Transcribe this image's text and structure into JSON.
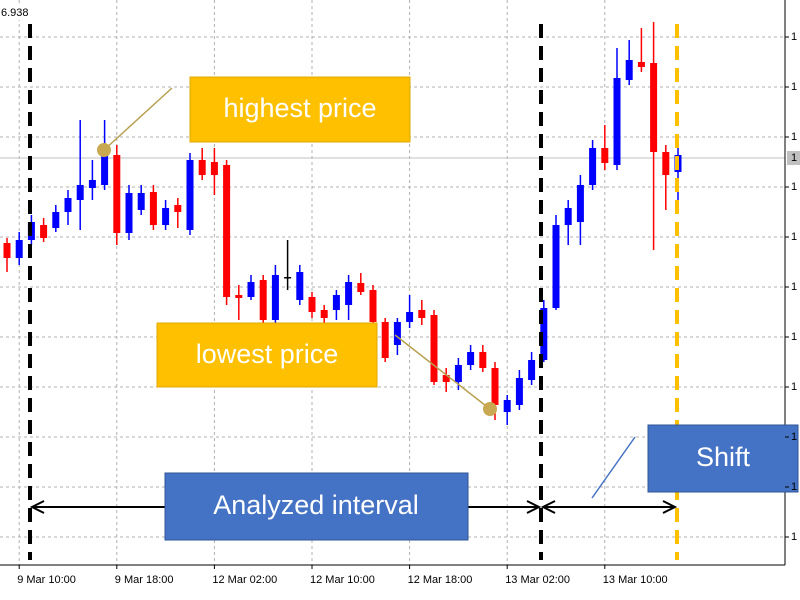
{
  "chart_data": {
    "type": "candlestick",
    "corner_label": "6.938",
    "categories": [
      null,
      "9 Mar 10:00",
      null,
      null,
      null,
      null,
      null,
      null,
      null,
      "9 Mar 18:00",
      null,
      null,
      null,
      null,
      null,
      null,
      null,
      "12 Mar 02:00",
      null,
      null,
      null,
      null,
      null,
      null,
      null,
      "12 Mar 10:00",
      null,
      null,
      null,
      null,
      null,
      null,
      null,
      "12 Mar 18:00",
      null,
      null,
      null,
      null,
      null,
      null,
      null,
      "13 Mar 02:00",
      null,
      null,
      null,
      null,
      null,
      null,
      null,
      "13 Mar 10:00",
      null,
      null,
      null,
      null,
      null,
      null
    ],
    "open": [
      1.16588,
      1.16558,
      1.16594,
      1.16624,
      1.16618,
      1.1665,
      1.16674,
      1.16698,
      1.16704,
      1.16764,
      1.16608,
      1.16654,
      1.1669,
      1.16624,
      1.16664,
      1.16614,
      1.16754,
      1.1675,
      1.16744,
      1.16484,
      1.1648,
      1.16514,
      1.16434,
      1.1652,
      1.16474,
      1.1648,
      1.16454,
      1.16454,
      1.16464,
      1.16508,
      1.16494,
      1.1643,
      1.16384,
      1.1643,
      1.16454,
      1.16444,
      1.16324,
      1.1631,
      1.16344,
      1.1637,
      1.16338,
      1.1625,
      1.16264,
      1.16314,
      1.16354,
      1.16458,
      1.16624,
      1.1663,
      1.16704,
      1.16778,
      1.16744,
      1.16914,
      1.1695,
      1.16948,
      1.1677,
      1.1673
    ],
    "high": [
      1.16598,
      1.1661,
      1.16644,
      1.16638,
      1.16664,
      1.16694,
      1.16834,
      1.16754,
      1.16834,
      1.16784,
      1.16704,
      1.16704,
      1.16704,
      1.16674,
      1.16678,
      1.16768,
      1.16778,
      1.16778,
      1.16754,
      1.16504,
      1.16524,
      1.16524,
      1.16544,
      1.16594,
      1.16544,
      1.1649,
      1.16464,
      1.16494,
      1.16524,
      1.16528,
      1.16504,
      1.16438,
      1.16438,
      1.16484,
      1.16474,
      1.16454,
      1.16338,
      1.16358,
      1.16384,
      1.16384,
      1.1635,
      1.16284,
      1.16334,
      1.1637,
      1.16474,
      1.16644,
      1.16674,
      1.16724,
      1.16794,
      1.16824,
      1.16978,
      1.16994,
      1.17018,
      1.1703,
      1.16784,
      1.16794
    ],
    "low": [
      1.1653,
      1.16544,
      1.16584,
      1.1659,
      1.1661,
      1.16624,
      1.16614,
      1.16674,
      1.16694,
      1.16584,
      1.16594,
      1.16644,
      1.16614,
      1.16614,
      1.16618,
      1.16604,
      1.16714,
      1.16684,
      1.16464,
      1.16434,
      1.16474,
      1.16424,
      1.16424,
      1.16494,
      1.16464,
      1.16438,
      1.16424,
      1.16434,
      1.16434,
      1.16484,
      1.16424,
      1.1635,
      1.16364,
      1.16418,
      1.16424,
      1.16304,
      1.1629,
      1.16294,
      1.16334,
      1.1633,
      1.16234,
      1.16224,
      1.16254,
      1.16304,
      1.1635,
      1.16454,
      1.16584,
      1.16584,
      1.16694,
      1.16734,
      1.16734,
      1.16904,
      1.1693,
      1.16574,
      1.16654,
      1.16664
    ],
    "close": [
      1.16558,
      1.16594,
      1.1663,
      1.16598,
      1.1665,
      1.16678,
      1.16704,
      1.16714,
      1.16774,
      1.16608,
      1.16688,
      1.16688,
      1.16624,
      1.16658,
      1.1665,
      1.16754,
      1.16724,
      1.16724,
      1.1648,
      1.16478,
      1.1651,
      1.16434,
      1.16524,
      1.1652,
      1.1653,
      1.1645,
      1.16438,
      1.16484,
      1.1651,
      1.1649,
      1.1643,
      1.16358,
      1.1643,
      1.1645,
      1.16438,
      1.1631,
      1.1631,
      1.16344,
      1.1637,
      1.16338,
      1.16264,
      1.16274,
      1.16318,
      1.16354,
      1.16458,
      1.16624,
      1.16658,
      1.16704,
      1.16778,
      1.16748,
      1.16918,
      1.16954,
      1.1694,
      1.1677,
      1.16724,
      1.16764
    ],
    "up_color": "#0000ff",
    "down_color": "#ff0000",
    "flat_color": "#000000",
    "ylim": [
      1.15944,
      1.17074
    ],
    "yticks": [
      {
        "value": 1.17,
        "label": "1"
      },
      {
        "value": 1.169,
        "label": "1"
      },
      {
        "value": 1.168,
        "label": "1"
      },
      {
        "value": 1.167,
        "label": "1"
      },
      {
        "value": 1.166,
        "label": "1"
      },
      {
        "value": 1.165,
        "label": "1"
      },
      {
        "value": 1.164,
        "label": "1"
      },
      {
        "value": 1.163,
        "label": "1"
      },
      {
        "value": 1.162,
        "label": "1"
      },
      {
        "value": 1.161,
        "label": "1"
      },
      {
        "value": 1.16,
        "label": "1"
      }
    ],
    "price_line": {
      "value": 1.16758,
      "label": "1"
    },
    "grid": true,
    "annotations": {
      "highest": "highest price",
      "lowest": "lowest price",
      "interval": "Analyzed interval",
      "shift": "Shift"
    }
  }
}
